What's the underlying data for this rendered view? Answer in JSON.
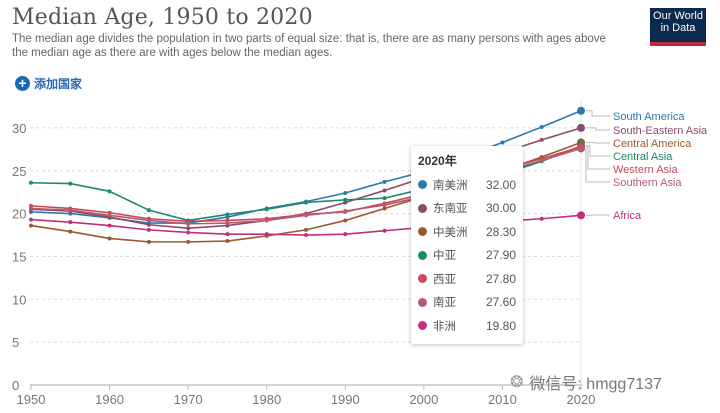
{
  "header": {
    "title": "Median Age, 1950 to 2020",
    "subtitle": "The median age divides the population in two parts of equal size: that is, there are as many persons with ages above the median age as there are with ages below the median ages.",
    "add_country_label": "添加国家",
    "logo_line1": "Our World",
    "logo_line2": "in Data"
  },
  "tooltip": {
    "title": "2020年",
    "rows": [
      {
        "name": "南美洲",
        "value": "32.00",
        "color": "#2a7ab0"
      },
      {
        "name": "东南亚",
        "value": "30.00",
        "color": "#8b4a6b"
      },
      {
        "name": "中美洲",
        "value": "28.30",
        "color": "#9a5a2e"
      },
      {
        "name": "中亚",
        "value": "27.90",
        "color": "#1d8a6a"
      },
      {
        "name": "西亚",
        "value": "27.80",
        "color": "#c8475a"
      },
      {
        "name": "南亚",
        "value": "27.60",
        "color": "#b75a6e"
      },
      {
        "name": "非洲",
        "value": "19.80",
        "color": "#c0307c"
      }
    ]
  },
  "watermark": {
    "icon": "wechat-icon",
    "text": "微信号: hmgg7137"
  },
  "chart_data": {
    "type": "line",
    "title": "Median Age, 1950 to 2020",
    "xlabel": "",
    "ylabel": "",
    "x": [
      1950,
      1955,
      1960,
      1965,
      1970,
      1975,
      1980,
      1985,
      1990,
      1995,
      2000,
      2005,
      2010,
      2015,
      2020
    ],
    "xticks": [
      "1950",
      "1960",
      "1970",
      "1980",
      "1990",
      "2000",
      "2010",
      "2020"
    ],
    "yticks": [
      "0",
      "5",
      "10",
      "15",
      "20",
      "25",
      "30"
    ],
    "ylim": [
      0,
      32
    ],
    "xlim": [
      1950,
      2020
    ],
    "grid": "horizontal-dotted",
    "legend": "right-inline-labels",
    "series": [
      {
        "name": "South America",
        "color": "#2a7ab0",
        "values": [
          20.2,
          20.0,
          19.5,
          18.9,
          18.9,
          19.6,
          20.6,
          21.4,
          22.4,
          23.7,
          24.9,
          26.6,
          28.3,
          30.1,
          32.0
        ]
      },
      {
        "name": "South-Eastern Asia",
        "color": "#8b4a6b",
        "values": [
          20.5,
          20.3,
          19.6,
          18.7,
          18.3,
          18.6,
          19.2,
          20.0,
          21.3,
          22.7,
          24.2,
          25.8,
          27.1,
          28.6,
          30.0
        ]
      },
      {
        "name": "Central America",
        "color": "#9a5a2e",
        "values": [
          18.6,
          17.9,
          17.1,
          16.7,
          16.7,
          16.8,
          17.4,
          18.1,
          19.2,
          20.6,
          22.0,
          23.6,
          25.0,
          26.6,
          28.3
        ]
      },
      {
        "name": "Central Asia",
        "color": "#1d8a6a",
        "values": [
          23.6,
          23.5,
          22.6,
          20.4,
          19.2,
          19.9,
          20.5,
          21.3,
          21.6,
          21.8,
          22.9,
          23.8,
          24.6,
          26.1,
          27.9
        ]
      },
      {
        "name": "Western Asia",
        "color": "#c8475a",
        "values": [
          20.9,
          20.6,
          20.1,
          19.4,
          19.1,
          19.2,
          19.4,
          19.9,
          20.2,
          21.2,
          22.3,
          23.6,
          25.2,
          26.4,
          27.8
        ]
      },
      {
        "name": "Southern Asia",
        "color": "#b75a6e",
        "values": [
          20.6,
          20.4,
          19.8,
          19.2,
          18.8,
          18.9,
          19.2,
          19.8,
          20.3,
          21.0,
          22.0,
          23.4,
          24.9,
          26.2,
          27.6
        ]
      },
      {
        "name": "Africa",
        "color": "#c0307c",
        "values": [
          19.3,
          19.0,
          18.6,
          18.1,
          17.8,
          17.6,
          17.6,
          17.5,
          17.6,
          18.0,
          18.4,
          18.7,
          19.1,
          19.4,
          19.8
        ]
      }
    ]
  }
}
